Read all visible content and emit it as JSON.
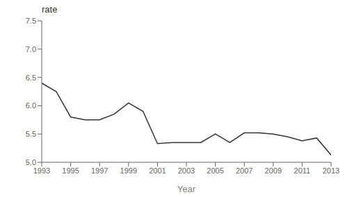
{
  "chart_data": {
    "type": "line",
    "x": [
      1993,
      1994,
      1995,
      1996,
      1997,
      1998,
      1999,
      2000,
      2001,
      2002,
      2003,
      2004,
      2005,
      2006,
      2007,
      2008,
      2009,
      2010,
      2011,
      2012,
      2013
    ],
    "values": [
      6.4,
      6.25,
      5.8,
      5.75,
      5.75,
      5.85,
      6.05,
      5.9,
      5.33,
      5.35,
      5.35,
      5.35,
      5.5,
      5.35,
      5.52,
      5.52,
      5.5,
      5.45,
      5.38,
      5.43,
      5.13
    ],
    "color": "#333333",
    "xlabel": "Year",
    "ylabel": "rate",
    "xlim": [
      1993,
      2013
    ],
    "ylim": [
      5.0,
      7.5
    ],
    "xticks": [
      1993,
      1995,
      1997,
      1999,
      2001,
      2003,
      2005,
      2007,
      2009,
      2011,
      2013
    ],
    "yticks": [
      {
        "value": 5.0,
        "label": "5.0"
      },
      5.5,
      {
        "value": 6.0,
        "label": "6.0"
      },
      6.5,
      {
        "value": 7.0,
        "label": "7.0"
      },
      7.5
    ],
    "grid": false
  }
}
